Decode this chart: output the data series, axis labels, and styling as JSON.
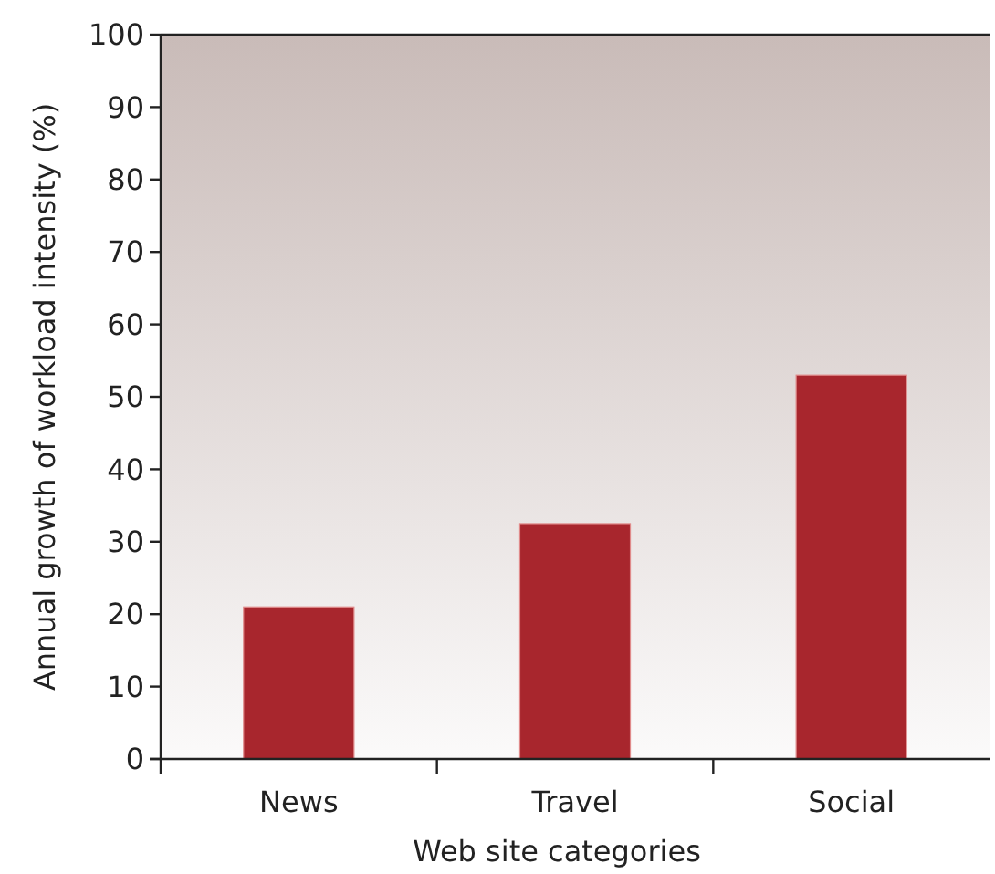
{
  "chart_data": {
    "type": "bar",
    "xlabel": "Web site categories",
    "ylabel": "Annual growth of workload intensity (%)",
    "categories": [
      "News",
      "Travel",
      "Social"
    ],
    "values": [
      21,
      32.5,
      53
    ],
    "color": "#a8262d",
    "ylim": [
      0,
      100
    ],
    "yticks": [
      0,
      10,
      20,
      30,
      40,
      50,
      60,
      70,
      80,
      90,
      100
    ],
    "grid": false
  }
}
